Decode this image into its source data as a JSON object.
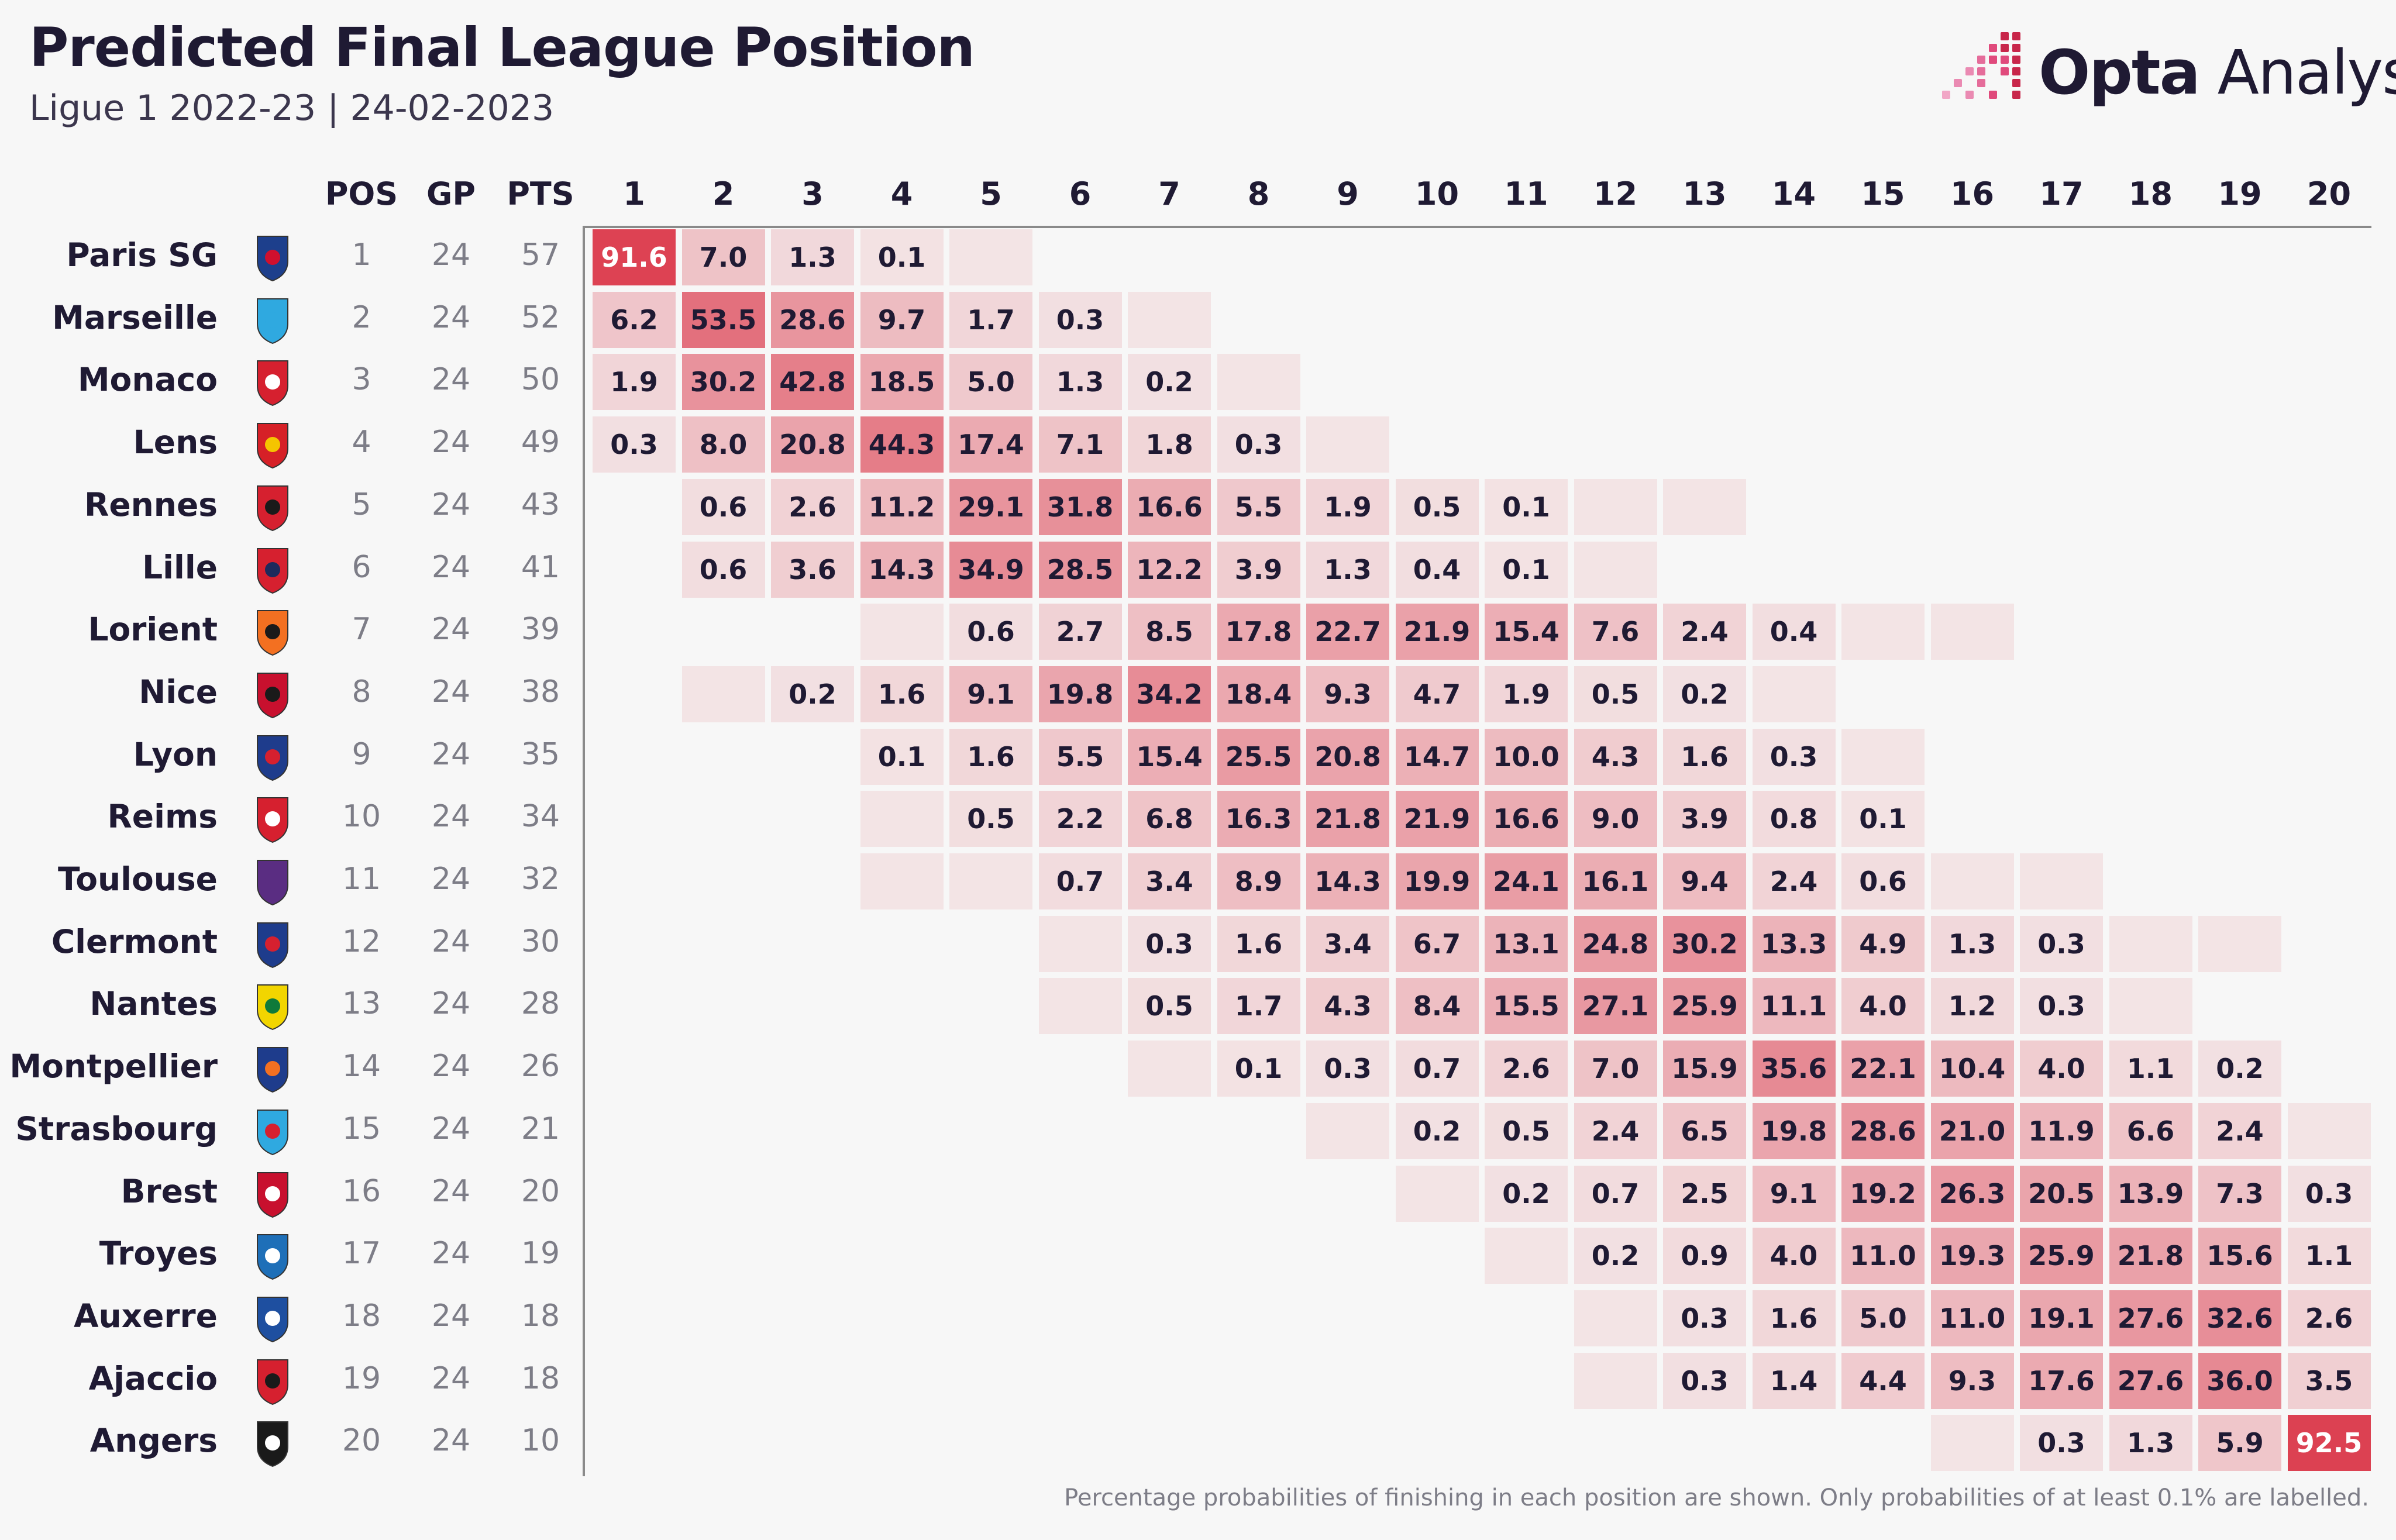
{
  "header": {
    "title": "Predicted Final League Position",
    "subtitle": "Ligue 1 2022-23 | 24-02-2023"
  },
  "brand": {
    "name_bold": "Opta",
    "name_light": " Analyst"
  },
  "colors": {
    "background": "#f7f7f7",
    "text": "#1f1a33",
    "stat_text": "#7d7d87",
    "cell_low": "#f3e4e5",
    "cell_high": "#dc3e50",
    "axis": "#8a8a8a"
  },
  "footnote": "Percentage probabilities of finishing in each position are shown. Only probabilities of at least 0.1% are labelled.",
  "chart_data": {
    "type": "heatmap",
    "title": "Predicted Final League Position",
    "subtitle": "Ligue 1 2022-23 | 24-02-2023",
    "stat_columns": [
      "POS",
      "GP",
      "PTS"
    ],
    "positions": [
      "1",
      "2",
      "3",
      "4",
      "5",
      "6",
      "7",
      "8",
      "9",
      "10",
      "11",
      "12",
      "13",
      "14",
      "15",
      "16",
      "17",
      "18",
      "19",
      "20"
    ],
    "teams": [
      {
        "name": "Paris SG",
        "badge": "psg-badge-icon",
        "pos": 1,
        "gp": 24,
        "pts": 57,
        "probs": {
          "1": 91.6,
          "2": 7.0,
          "3": 1.3,
          "4": 0.1,
          "5": 0
        }
      },
      {
        "name": "Marseille",
        "badge": "marseille-badge-icon",
        "pos": 2,
        "gp": 24,
        "pts": 52,
        "probs": {
          "1": 6.2,
          "2": 53.5,
          "3": 28.6,
          "4": 9.7,
          "5": 1.7,
          "6": 0.3,
          "7": 0
        }
      },
      {
        "name": "Monaco",
        "badge": "monaco-badge-icon",
        "pos": 3,
        "gp": 24,
        "pts": 50,
        "probs": {
          "1": 1.9,
          "2": 30.2,
          "3": 42.8,
          "4": 18.5,
          "5": 5.0,
          "6": 1.3,
          "7": 0.2,
          "8": 0
        }
      },
      {
        "name": "Lens",
        "badge": "lens-badge-icon",
        "pos": 4,
        "gp": 24,
        "pts": 49,
        "probs": {
          "1": 0.3,
          "2": 8.0,
          "3": 20.8,
          "4": 44.3,
          "5": 17.4,
          "6": 7.1,
          "7": 1.8,
          "8": 0.3,
          "9": 0
        }
      },
      {
        "name": "Rennes",
        "badge": "rennes-badge-icon",
        "pos": 5,
        "gp": 24,
        "pts": 43,
        "probs": {
          "2": 0.6,
          "3": 2.6,
          "4": 11.2,
          "5": 29.1,
          "6": 31.8,
          "7": 16.6,
          "8": 5.5,
          "9": 1.9,
          "10": 0.5,
          "11": 0.1,
          "12": 0,
          "13": 0
        }
      },
      {
        "name": "Lille",
        "badge": "lille-badge-icon",
        "pos": 6,
        "gp": 24,
        "pts": 41,
        "probs": {
          "2": 0.6,
          "3": 3.6,
          "4": 14.3,
          "5": 34.9,
          "6": 28.5,
          "7": 12.2,
          "8": 3.9,
          "9": 1.3,
          "10": 0.4,
          "11": 0.1,
          "12": 0
        }
      },
      {
        "name": "Lorient",
        "badge": "lorient-badge-icon",
        "pos": 7,
        "gp": 24,
        "pts": 39,
        "probs": {
          "4": 0,
          "5": 0.6,
          "6": 2.7,
          "7": 8.5,
          "8": 17.8,
          "9": 22.7,
          "10": 21.9,
          "11": 15.4,
          "12": 7.6,
          "13": 2.4,
          "14": 0.4,
          "15": 0,
          "16": 0
        }
      },
      {
        "name": "Nice",
        "badge": "nice-badge-icon",
        "pos": 8,
        "gp": 24,
        "pts": 38,
        "probs": {
          "2": 0,
          "3": 0.2,
          "4": 1.6,
          "5": 9.1,
          "6": 19.8,
          "7": 34.2,
          "8": 18.4,
          "9": 9.3,
          "10": 4.7,
          "11": 1.9,
          "12": 0.5,
          "13": 0.2,
          "14": 0
        }
      },
      {
        "name": "Lyon",
        "badge": "lyon-badge-icon",
        "pos": 9,
        "gp": 24,
        "pts": 35,
        "probs": {
          "4": 0.1,
          "5": 1.6,
          "6": 5.5,
          "7": 15.4,
          "8": 25.5,
          "9": 20.8,
          "10": 14.7,
          "11": 10.0,
          "12": 4.3,
          "13": 1.6,
          "14": 0.3,
          "15": 0
        }
      },
      {
        "name": "Reims",
        "badge": "reims-badge-icon",
        "pos": 10,
        "gp": 24,
        "pts": 34,
        "probs": {
          "4": 0,
          "5": 0.5,
          "6": 2.2,
          "7": 6.8,
          "8": 16.3,
          "9": 21.8,
          "10": 21.9,
          "11": 16.6,
          "12": 9.0,
          "13": 3.9,
          "14": 0.8,
          "15": 0.1
        }
      },
      {
        "name": "Toulouse",
        "badge": "toulouse-badge-icon",
        "pos": 11,
        "gp": 24,
        "pts": 32,
        "probs": {
          "4": 0,
          "5": 0,
          "6": 0.7,
          "7": 3.4,
          "8": 8.9,
          "9": 14.3,
          "10": 19.9,
          "11": 24.1,
          "12": 16.1,
          "13": 9.4,
          "14": 2.4,
          "15": 0.6,
          "16": 0,
          "17": 0
        }
      },
      {
        "name": "Clermont",
        "badge": "clermont-badge-icon",
        "pos": 12,
        "gp": 24,
        "pts": 30,
        "probs": {
          "6": 0,
          "7": 0.3,
          "8": 1.6,
          "9": 3.4,
          "10": 6.7,
          "11": 13.1,
          "12": 24.8,
          "13": 30.2,
          "14": 13.3,
          "15": 4.9,
          "16": 1.3,
          "17": 0.3,
          "18": 0,
          "19": 0
        }
      },
      {
        "name": "Nantes",
        "badge": "nantes-badge-icon",
        "pos": 13,
        "gp": 24,
        "pts": 28,
        "probs": {
          "6": 0,
          "7": 0.5,
          "8": 1.7,
          "9": 4.3,
          "10": 8.4,
          "11": 15.5,
          "12": 27.1,
          "13": 25.9,
          "14": 11.1,
          "15": 4.0,
          "16": 1.2,
          "17": 0.3,
          "18": 0
        }
      },
      {
        "name": "Montpellier",
        "badge": "montpellier-badge-icon",
        "pos": 14,
        "gp": 24,
        "pts": 26,
        "probs": {
          "7": 0,
          "8": 0.1,
          "9": 0.3,
          "10": 0.7,
          "11": 2.6,
          "12": 7.0,
          "13": 15.9,
          "14": 35.6,
          "15": 22.1,
          "16": 10.4,
          "17": 4.0,
          "18": 1.1,
          "19": 0.2
        }
      },
      {
        "name": "Strasbourg",
        "badge": "strasbourg-badge-icon",
        "pos": 15,
        "gp": 24,
        "pts": 21,
        "probs": {
          "9": 0,
          "10": 0.2,
          "11": 0.5,
          "12": 2.4,
          "13": 6.5,
          "14": 19.8,
          "15": 28.6,
          "16": 21.0,
          "17": 11.9,
          "18": 6.6,
          "19": 2.4,
          "20": 0
        }
      },
      {
        "name": "Brest",
        "badge": "brest-badge-icon",
        "pos": 16,
        "gp": 24,
        "pts": 20,
        "probs": {
          "10": 0,
          "11": 0.2,
          "12": 0.7,
          "13": 2.5,
          "14": 9.1,
          "15": 19.2,
          "16": 26.3,
          "17": 20.5,
          "18": 13.9,
          "19": 7.3,
          "20": 0.3
        }
      },
      {
        "name": "Troyes",
        "badge": "troyes-badge-icon",
        "pos": 17,
        "gp": 24,
        "pts": 19,
        "probs": {
          "11": 0,
          "12": 0.2,
          "13": 0.9,
          "14": 4.0,
          "15": 11.0,
          "16": 19.3,
          "17": 25.9,
          "18": 21.8,
          "19": 15.6,
          "20": 1.1
        }
      },
      {
        "name": "Auxerre",
        "badge": "auxerre-badge-icon",
        "pos": 18,
        "gp": 24,
        "pts": 18,
        "probs": {
          "12": 0,
          "13": 0.3,
          "14": 1.6,
          "15": 5.0,
          "16": 11.0,
          "17": 19.1,
          "18": 27.6,
          "19": 32.6,
          "20": 2.6
        }
      },
      {
        "name": "Ajaccio",
        "badge": "ajaccio-badge-icon",
        "pos": 19,
        "gp": 24,
        "pts": 18,
        "probs": {
          "12": 0,
          "13": 0.3,
          "14": 1.4,
          "15": 4.4,
          "16": 9.3,
          "17": 17.6,
          "18": 27.6,
          "19": 36.0,
          "20": 3.5
        }
      },
      {
        "name": "Angers",
        "badge": "angers-badge-icon",
        "pos": 20,
        "gp": 24,
        "pts": 10,
        "probs": {
          "16": 0,
          "17": 0.3,
          "18": 1.3,
          "19": 5.9,
          "20": 92.5
        }
      }
    ],
    "value_unit": "%",
    "label_threshold": 0.1
  }
}
